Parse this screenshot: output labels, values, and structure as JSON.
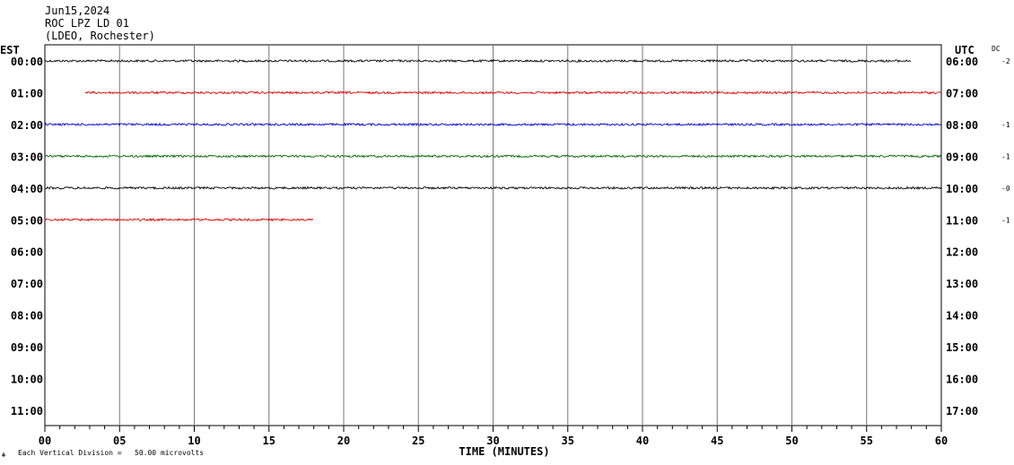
{
  "header": {
    "date": "Jun15,2024",
    "station": "ROC LPZ LD 01",
    "location": "(LDEO, Rochester)"
  },
  "left_axis_title": "EST",
  "right_axis_title": "UTC",
  "dc_title": "DC",
  "x_axis_title": "TIME (MINUTES)",
  "footer_note": "Each Vertical Division =   50.00 microvolts",
  "chart_data": {
    "type": "line",
    "title": "ROC LPZ LD 01",
    "xlabel": "TIME (MINUTES)",
    "xlim": [
      0,
      60
    ],
    "x_ticks": [
      "00",
      "05",
      "10",
      "15",
      "20",
      "25",
      "30",
      "35",
      "40",
      "45",
      "50",
      "55",
      "60"
    ],
    "rows_est": [
      "00:00",
      "01:00",
      "02:00",
      "03:00",
      "04:00",
      "05:00",
      "06:00",
      "07:00",
      "08:00",
      "09:00",
      "10:00",
      "11:00"
    ],
    "rows_utc": [
      "06:00",
      "07:00",
      "08:00",
      "09:00",
      "10:00",
      "11:00",
      "12:00",
      "13:00",
      "14:00",
      "15:00",
      "16:00",
      "17:00"
    ],
    "dc_offsets": [
      "-2",
      "",
      "-1",
      "-1",
      "-0",
      "-1",
      "",
      "",
      "",
      "",
      "",
      ""
    ],
    "grid": true,
    "series": [
      {
        "row": "00:00",
        "color": "#000000",
        "start_min": 0,
        "end_min": 58
      },
      {
        "row": "01:00",
        "color": "#dd0000",
        "start_min": 2.7,
        "end_min": 60
      },
      {
        "row": "02:00",
        "color": "#0000cc",
        "start_min": 0,
        "end_min": 60
      },
      {
        "row": "03:00",
        "color": "#006600",
        "start_min": 0,
        "end_min": 60
      },
      {
        "row": "04:00",
        "color": "#000000",
        "start_min": 0,
        "end_min": 60
      },
      {
        "row": "05:00",
        "color": "#dd0000",
        "start_min": 0,
        "end_min": 18
      }
    ]
  }
}
